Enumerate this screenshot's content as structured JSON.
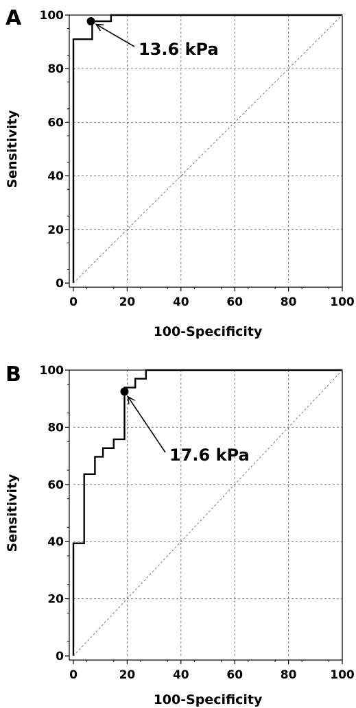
{
  "chart_data": [
    {
      "type": "line",
      "panel_label": "A",
      "xlabel": "100-Specificity",
      "ylabel": "Sensitivity",
      "xlim": [
        0,
        100
      ],
      "ylim": [
        0,
        100
      ],
      "xticks": [
        0,
        20,
        40,
        60,
        80,
        100
      ],
      "yticks": [
        0,
        20,
        40,
        60,
        80,
        100
      ],
      "grid": true,
      "series": [
        {
          "style": "step",
          "x": [
            0,
            0,
            7,
            7,
            14,
            14,
            100
          ],
          "y": [
            0,
            91,
            91,
            97.7,
            97.7,
            100,
            100
          ]
        },
        {
          "style": "diagonal",
          "x": [
            0,
            100
          ],
          "y": [
            0,
            100
          ]
        }
      ],
      "marker": {
        "x": 6.5,
        "y": 97.7
      },
      "annotation": {
        "text": "13.6 kPa"
      }
    },
    {
      "type": "line",
      "panel_label": "B",
      "xlabel": "100-Specificity",
      "ylabel": "Sensitivity",
      "xlim": [
        0,
        100
      ],
      "ylim": [
        0,
        100
      ],
      "xticks": [
        0,
        20,
        40,
        60,
        80,
        100
      ],
      "yticks": [
        0,
        20,
        40,
        60,
        80,
        100
      ],
      "grid": true,
      "series": [
        {
          "style": "step",
          "x": [
            0,
            0,
            4,
            4,
            8,
            8,
            11,
            11,
            15,
            15,
            19,
            19,
            21,
            21,
            23,
            23,
            27,
            27,
            100
          ],
          "y": [
            0,
            39.4,
            39.4,
            63.6,
            63.6,
            69.7,
            69.7,
            72.7,
            72.7,
            75.8,
            75.8,
            93.9,
            93.9,
            93.9,
            93.9,
            97,
            97,
            100,
            100
          ]
        },
        {
          "style": "diagonal",
          "x": [
            0,
            100
          ],
          "y": [
            0,
            100
          ]
        }
      ],
      "marker": {
        "x": 19,
        "y": 92.5
      },
      "annotation": {
        "text": "17.6 kPa"
      }
    }
  ]
}
